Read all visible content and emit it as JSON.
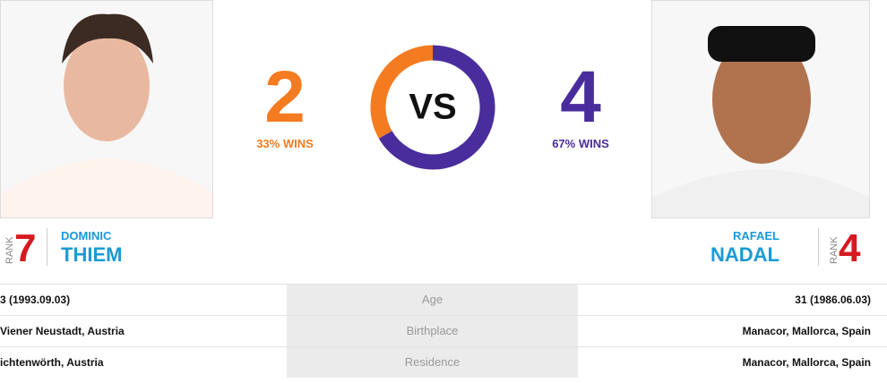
{
  "players": [
    {
      "rank_label": "RANK",
      "rank": 7,
      "first_name": "DOMINIC",
      "last_name": "THIEM",
      "wins": 2,
      "win_pct": "33% WINS",
      "color": "#f47b20"
    },
    {
      "rank_label": "RANK",
      "rank": 4,
      "first_name": "RAFAEL",
      "last_name": "NADAL",
      "wins": 4,
      "win_pct": "67% WINS",
      "color": "#4a2d9c"
    }
  ],
  "vs": "VS",
  "table": {
    "rows": [
      {
        "left": "3 (1993.09.03)",
        "label": "Age",
        "right": "31 (1986.06.03)"
      },
      {
        "left": "Viener Neustadt, Austria",
        "label": "Birthplace",
        "right": "Manacor, Mallorca, Spain"
      },
      {
        "left": "ichtenwörth, Austria",
        "label": "Residence",
        "right": "Manacor, Mallorca, Spain"
      }
    ]
  }
}
